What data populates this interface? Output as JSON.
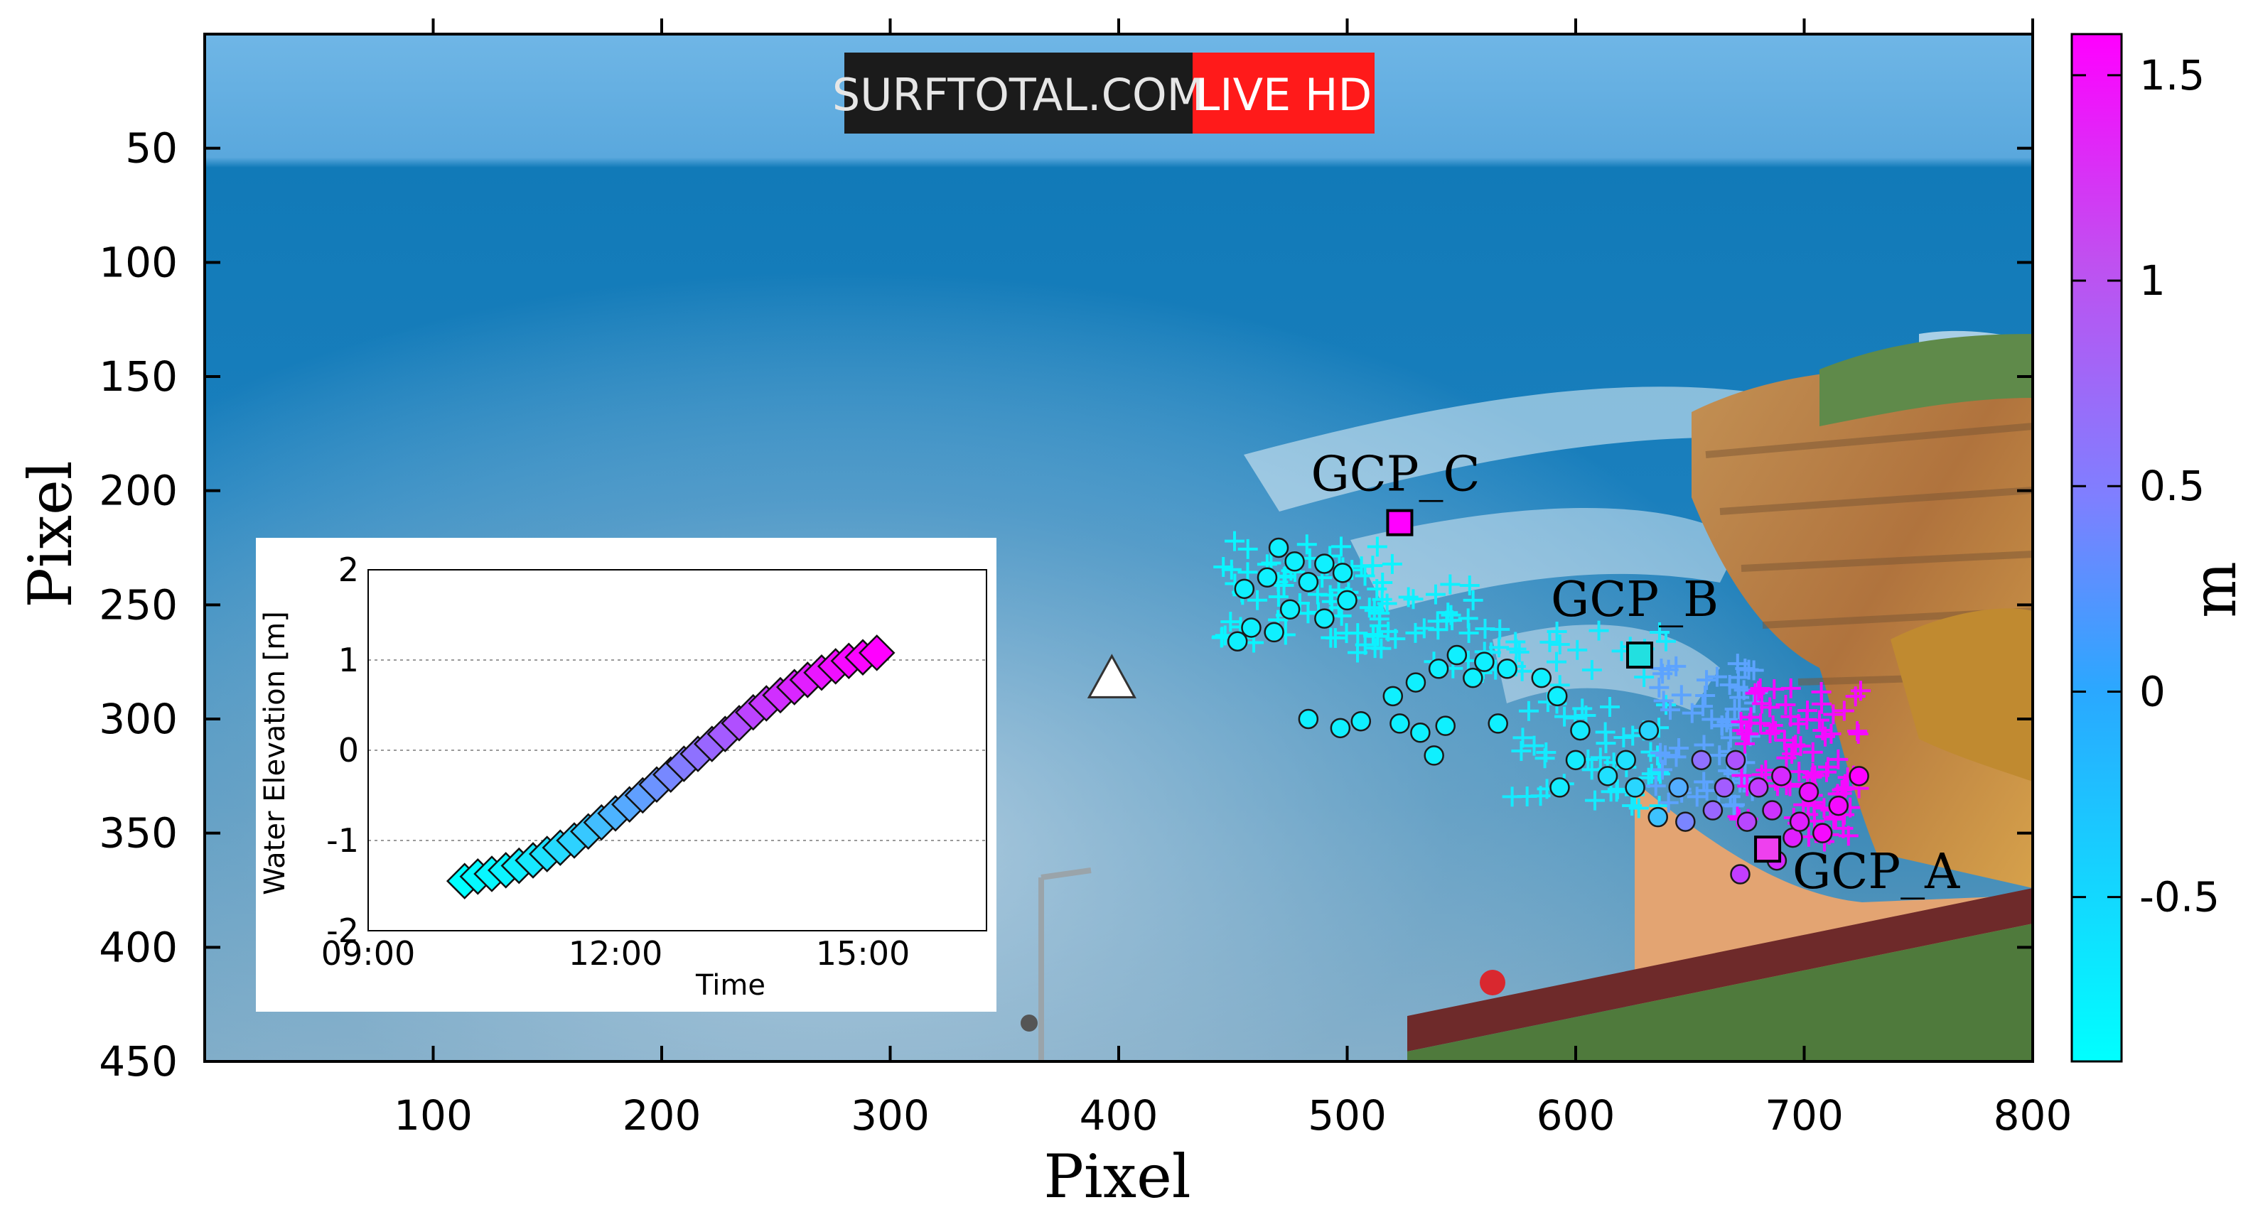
{
  "chart_data": [
    {
      "type": "scatter",
      "xlabel": "Pixel",
      "ylabel": "Pixel",
      "xlim": [
        0,
        800
      ],
      "ylim": [
        450,
        0
      ],
      "x_ticks": [
        100,
        200,
        300,
        400,
        500,
        600,
        700,
        800
      ],
      "y_ticks": [
        50,
        100,
        150,
        200,
        250,
        300,
        350,
        400,
        450
      ],
      "background": "coastal webcam photograph",
      "watermark": {
        "left": "SURFTOTAL.COM",
        "right": "LIVE HD",
        "left_bg": "#1b1b1b",
        "right_bg": "#ff1a1a"
      },
      "colorbar": {
        "label": "m",
        "ticks": [
          1.5,
          1,
          0.5,
          0,
          -0.5
        ],
        "range": [
          -0.9,
          1.6
        ],
        "colors": [
          "#00ffff",
          "#ff00ff"
        ]
      },
      "gcps": [
        {
          "name": "GCP_C",
          "x": 523,
          "y": 214,
          "color": "#ff00ff"
        },
        {
          "name": "GCP_B",
          "x": 628,
          "y": 272,
          "color": "#22e0e0"
        },
        {
          "name": "GCP_A",
          "x": 684,
          "y": 357,
          "color": "#ee40ee"
        }
      ],
      "camera_marker": {
        "x": 397,
        "y": 283,
        "shape": "triangle"
      },
      "circles": [
        {
          "x": 455,
          "y": 243,
          "z": -0.75
        },
        {
          "x": 465,
          "y": 238,
          "z": -0.75
        },
        {
          "x": 470,
          "y": 225,
          "z": -0.75
        },
        {
          "x": 477,
          "y": 231,
          "z": -0.75
        },
        {
          "x": 483,
          "y": 240,
          "z": -0.75
        },
        {
          "x": 490,
          "y": 232,
          "z": -0.75
        },
        {
          "x": 498,
          "y": 236,
          "z": -0.75
        },
        {
          "x": 500,
          "y": 248,
          "z": -0.75
        },
        {
          "x": 490,
          "y": 256,
          "z": -0.75
        },
        {
          "x": 475,
          "y": 252,
          "z": -0.75
        },
        {
          "x": 468,
          "y": 262,
          "z": -0.75
        },
        {
          "x": 458,
          "y": 260,
          "z": -0.75
        },
        {
          "x": 452,
          "y": 266,
          "z": -0.75
        },
        {
          "x": 483,
          "y": 300,
          "z": -0.75
        },
        {
          "x": 497,
          "y": 304,
          "z": -0.75
        },
        {
          "x": 506,
          "y": 301,
          "z": -0.75
        },
        {
          "x": 520,
          "y": 290,
          "z": -0.75
        },
        {
          "x": 530,
          "y": 284,
          "z": -0.75
        },
        {
          "x": 540,
          "y": 278,
          "z": -0.75
        },
        {
          "x": 548,
          "y": 272,
          "z": -0.75
        },
        {
          "x": 555,
          "y": 282,
          "z": -0.75
        },
        {
          "x": 560,
          "y": 275,
          "z": -0.75
        },
        {
          "x": 570,
          "y": 278,
          "z": -0.75
        },
        {
          "x": 585,
          "y": 282,
          "z": -0.75
        },
        {
          "x": 592,
          "y": 290,
          "z": -0.75
        },
        {
          "x": 523,
          "y": 302,
          "z": -0.75
        },
        {
          "x": 532,
          "y": 306,
          "z": -0.75
        },
        {
          "x": 543,
          "y": 303,
          "z": -0.75
        },
        {
          "x": 538,
          "y": 316,
          "z": -0.75
        },
        {
          "x": 566,
          "y": 302,
          "z": -0.75
        },
        {
          "x": 602,
          "y": 305,
          "z": -0.7
        },
        {
          "x": 600,
          "y": 318,
          "z": -0.7
        },
        {
          "x": 593,
          "y": 330,
          "z": -0.7
        },
        {
          "x": 614,
          "y": 325,
          "z": -0.6
        },
        {
          "x": 622,
          "y": 318,
          "z": -0.6
        },
        {
          "x": 626,
          "y": 330,
          "z": -0.5
        },
        {
          "x": 632,
          "y": 305,
          "z": -0.5
        },
        {
          "x": 636,
          "y": 343,
          "z": -0.3
        },
        {
          "x": 645,
          "y": 330,
          "z": -0.1
        },
        {
          "x": 648,
          "y": 345,
          "z": 0.3
        },
        {
          "x": 655,
          "y": 318,
          "z": 0.5
        },
        {
          "x": 660,
          "y": 340,
          "z": 0.6
        },
        {
          "x": 665,
          "y": 330,
          "z": 0.7
        },
        {
          "x": 670,
          "y": 318,
          "z": 0.8
        },
        {
          "x": 675,
          "y": 345,
          "z": 0.9
        },
        {
          "x": 680,
          "y": 330,
          "z": 1.0
        },
        {
          "x": 686,
          "y": 340,
          "z": 1.1
        },
        {
          "x": 690,
          "y": 325,
          "z": 1.2
        },
        {
          "x": 695,
          "y": 352,
          "z": 1.3
        },
        {
          "x": 702,
          "y": 332,
          "z": 1.4
        },
        {
          "x": 708,
          "y": 350,
          "z": 1.5
        },
        {
          "x": 715,
          "y": 338,
          "z": 1.5
        },
        {
          "x": 724,
          "y": 325,
          "z": 1.6
        },
        {
          "x": 672,
          "y": 368,
          "z": 1.0
        },
        {
          "x": 688,
          "y": 362,
          "z": 1.2
        },
        {
          "x": 698,
          "y": 345,
          "z": 1.3
        }
      ],
      "crosses": [
        {
          "x0": 445,
          "x1": 520,
          "y0": 222,
          "y1": 268,
          "z": -0.8,
          "n": 70
        },
        {
          "x0": 500,
          "x1": 560,
          "y0": 240,
          "y1": 280,
          "z": -0.75,
          "n": 30
        },
        {
          "x0": 560,
          "x1": 640,
          "y0": 260,
          "y1": 340,
          "z": -0.7,
          "n": 70
        },
        {
          "x0": 635,
          "x1": 680,
          "y0": 275,
          "y1": 340,
          "z": 0.0,
          "n": 60
        },
        {
          "x0": 670,
          "x1": 725,
          "y0": 285,
          "y1": 355,
          "z": 1.5,
          "n": 90
        }
      ]
    },
    {
      "type": "scatter",
      "xlabel": "Time",
      "ylabel": "Water Elevation [m]",
      "xlim_hours": [
        9,
        16.5
      ],
      "ylim": [
        -2,
        2
      ],
      "x_ticks": [
        "09:00",
        "12:00",
        "15:00"
      ],
      "x_tick_hours": [
        9,
        12,
        15
      ],
      "y_ticks": [
        "2",
        "1",
        "0",
        "-1",
        "-2"
      ],
      "y_tick_values": [
        2,
        1,
        0,
        -1,
        -2
      ],
      "marker": "diamond",
      "x_hours": [
        10.17,
        10.33,
        10.5,
        10.67,
        10.83,
        11.0,
        11.17,
        11.33,
        11.5,
        11.67,
        11.83,
        12.0,
        12.17,
        12.33,
        12.5,
        12.67,
        12.83,
        13.0,
        13.17,
        13.33,
        13.5,
        13.67,
        13.83,
        14.0,
        14.17,
        14.33,
        14.5,
        14.67,
        14.83,
        15.0,
        15.17
      ],
      "values": [
        -1.45,
        -1.4,
        -1.37,
        -1.33,
        -1.28,
        -1.22,
        -1.15,
        -1.08,
        -1.0,
        -0.9,
        -0.8,
        -0.7,
        -0.6,
        -0.5,
        -0.38,
        -0.27,
        -0.15,
        -0.04,
        0.07,
        0.18,
        0.3,
        0.42,
        0.52,
        0.61,
        0.7,
        0.78,
        0.86,
        0.93,
        0.99,
        1.03,
        1.08
      ]
    }
  ]
}
